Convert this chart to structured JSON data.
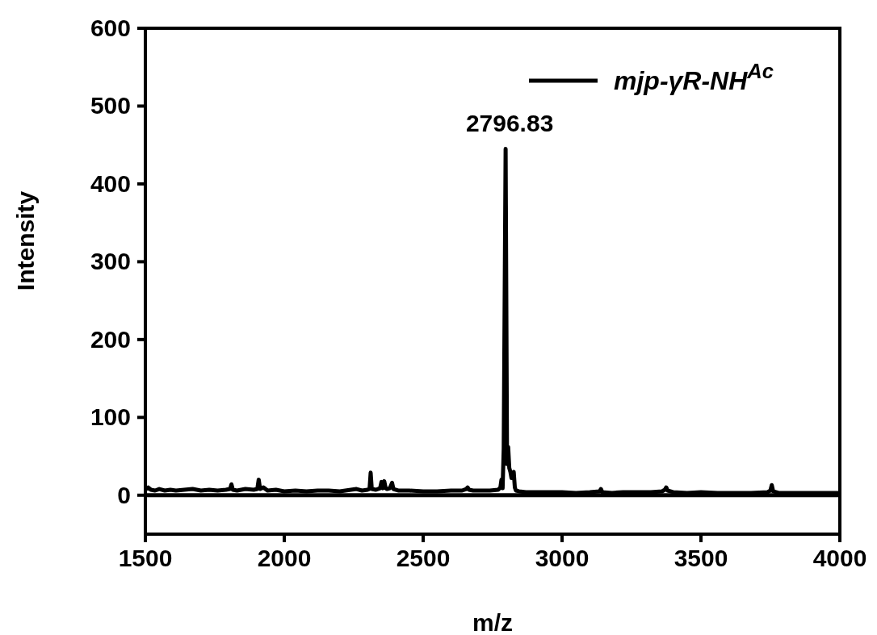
{
  "chart_data": {
    "type": "line",
    "xlabel": "m/z",
    "ylabel": "Intensity",
    "xlim": [
      1500,
      4000
    ],
    "ylim": [
      -50,
      600
    ],
    "xticks": [
      1500,
      2000,
      2500,
      3000,
      3500,
      4000
    ],
    "yticks": [
      0,
      100,
      200,
      300,
      400,
      500,
      600
    ],
    "legend": "top right",
    "marker": "none",
    "line_style": "solid",
    "ref_lines": [
      {
        "axis": "y",
        "value": 0,
        "color": "#000000"
      }
    ],
    "annotations": [
      {
        "text": "2796.83",
        "x": 2796.83,
        "y": 445
      }
    ],
    "series": [
      {
        "name": "mjp-γR-NH$^{Ac}$",
        "color": "#000000",
        "x": [
          1500,
          1510,
          1520,
          1535,
          1550,
          1570,
          1590,
          1610,
          1640,
          1670,
          1700,
          1730,
          1760,
          1790,
          1805,
          1810,
          1815,
          1830,
          1860,
          1890,
          1903,
          1908,
          1913,
          1925,
          1940,
          1970,
          2000,
          2040,
          2080,
          2120,
          2160,
          2200,
          2240,
          2260,
          2280,
          2300,
          2307,
          2311,
          2315,
          2330,
          2345,
          2350,
          2355,
          2360,
          2365,
          2370,
          2380,
          2388,
          2393,
          2410,
          2450,
          2500,
          2550,
          2600,
          2640,
          2655,
          2660,
          2665,
          2680,
          2700,
          2740,
          2770,
          2778,
          2782,
          2786,
          2790,
          2796.83,
          2802,
          2806,
          2810,
          2814,
          2818,
          2826,
          2830,
          2834,
          2845,
          2870,
          2900,
          2950,
          3000,
          3050,
          3100,
          3135,
          3140,
          3145,
          3180,
          3220,
          3270,
          3320,
          3360,
          3370,
          3375,
          3380,
          3400,
          3450,
          3500,
          3560,
          3620,
          3680,
          3740,
          3750,
          3755,
          3760,
          3780,
          3850,
          3920,
          4000
        ],
        "values": [
          8,
          10,
          7,
          6,
          8,
          6,
          7,
          6,
          7,
          8,
          6,
          7,
          6,
          7,
          8,
          14,
          7,
          6,
          8,
          7,
          8,
          20,
          8,
          10,
          6,
          7,
          5,
          6,
          5,
          6,
          6,
          5,
          7,
          8,
          6,
          7,
          8,
          29,
          8,
          7,
          9,
          17,
          9,
          18,
          9,
          8,
          9,
          16,
          8,
          6,
          6,
          5,
          5,
          6,
          6,
          8,
          10,
          7,
          6,
          6,
          6,
          7,
          10,
          20,
          9,
          60,
          445,
          40,
          62,
          35,
          30,
          22,
          30,
          10,
          6,
          5,
          4,
          4,
          4,
          4,
          3,
          4,
          5,
          8,
          4,
          3,
          4,
          4,
          4,
          5,
          7,
          10,
          6,
          4,
          3,
          4,
          3,
          3,
          3,
          4,
          6,
          13,
          5,
          3,
          3,
          3,
          3
        ]
      }
    ]
  }
}
